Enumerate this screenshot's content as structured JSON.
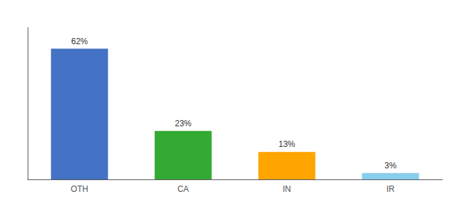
{
  "chart_data": {
    "type": "bar",
    "categories": [
      "OTH",
      "CA",
      "IN",
      "IR"
    ],
    "values": [
      62,
      23,
      13,
      3
    ],
    "value_labels": [
      "62%",
      "23%",
      "13%",
      "3%"
    ],
    "data_labels": true,
    "colors": [
      "#4472C4",
      "#33AA33",
      "#FFA500",
      "#87CEEB"
    ],
    "ylim": [
      0,
      72
    ],
    "grid": false,
    "tick_labels": "x"
  }
}
